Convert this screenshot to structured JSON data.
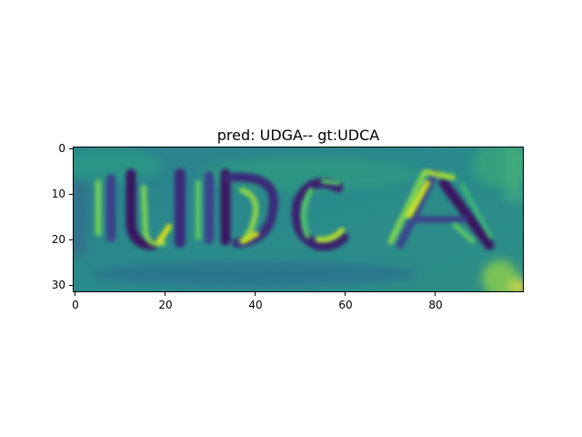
{
  "title": "pred: UDGA-- gt:UDCA",
  "image": {
    "depicted_text": "UDCA",
    "colormap": [
      "#440154",
      "#3b528b",
      "#21918c",
      "#5ec962",
      "#fde725"
    ],
    "background_color": "#2f8a8c"
  },
  "axes": {
    "x_ticks": [
      "0",
      "20",
      "40",
      "60",
      "80"
    ],
    "y_ticks": [
      "0",
      "10",
      "20",
      "30"
    ],
    "x_range": [
      -0.5,
      99.5
    ],
    "y_range": [
      31.5,
      -0.5
    ]
  }
}
